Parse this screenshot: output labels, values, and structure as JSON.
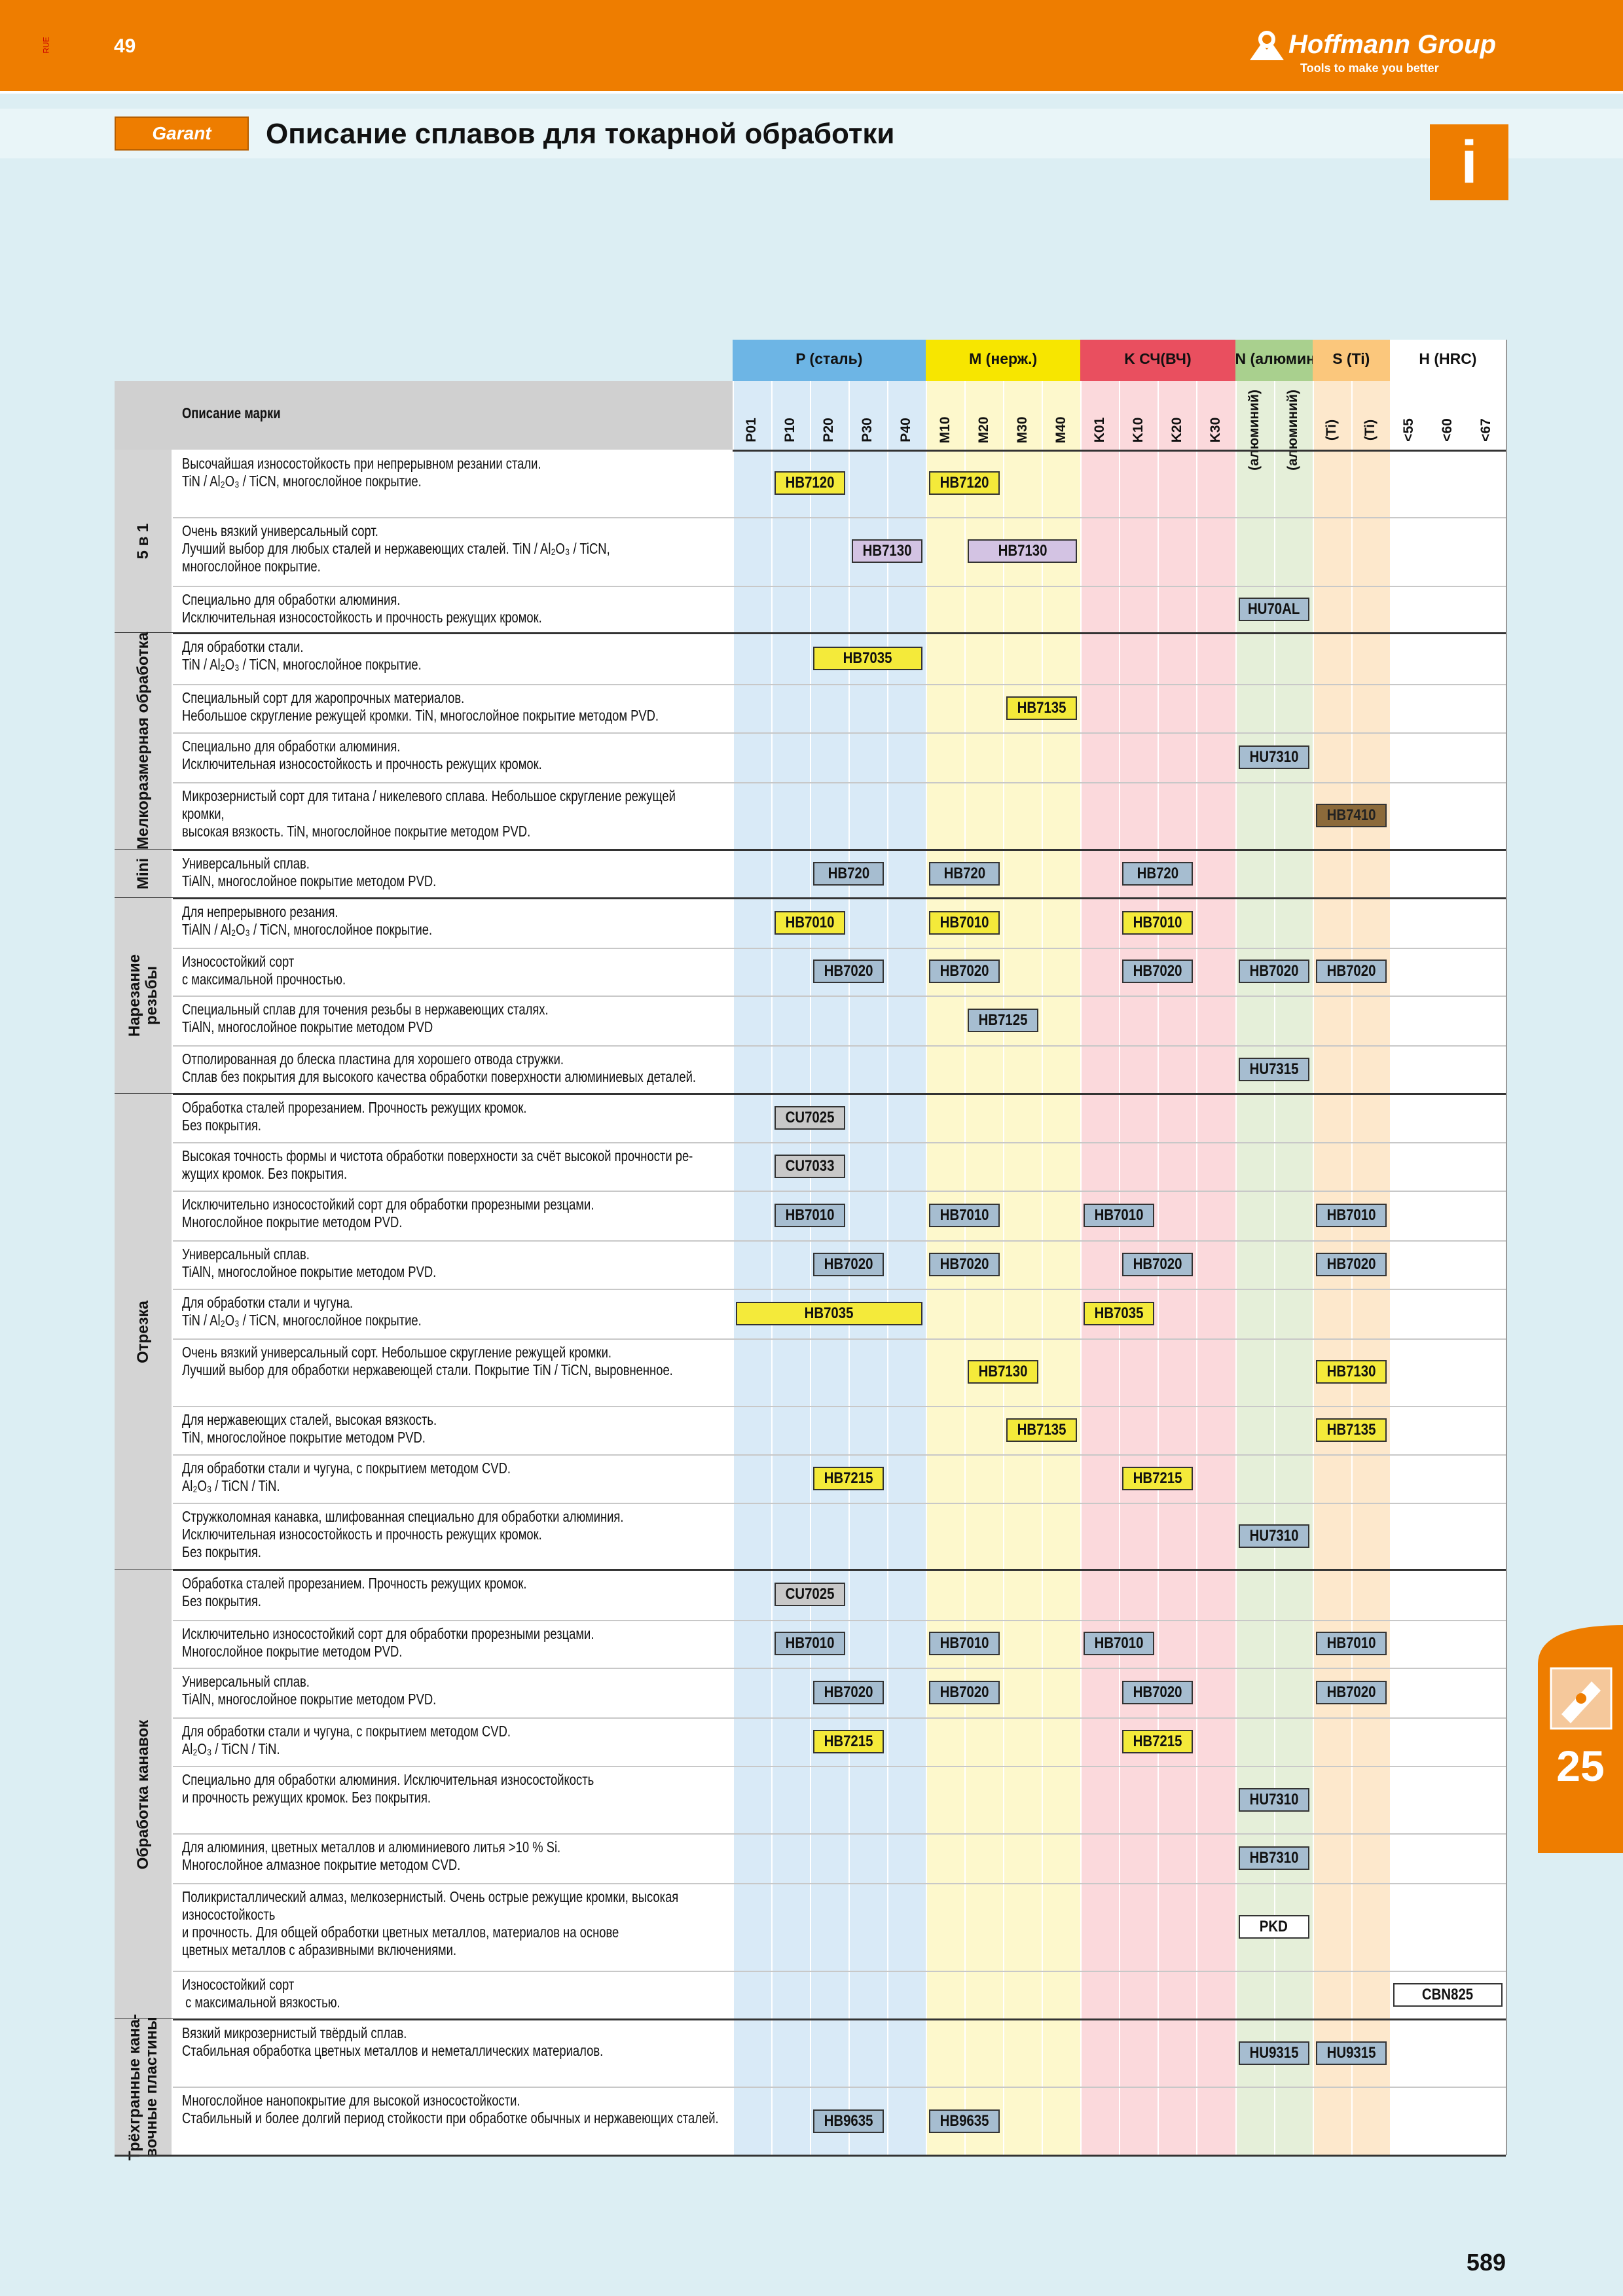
{
  "header": {
    "section_code": "RUE",
    "page_ref": "49",
    "brand": "Hoffmann Group",
    "slogan": "Tools to make you better"
  },
  "title_bar": {
    "logo": "Garant",
    "title": "Описание сплавов для токарной обработки",
    "info_icon": "i"
  },
  "table": {
    "description_header": "Описание марки",
    "column_groups": [
      {
        "label": "P (сталь)",
        "head_color": "#6db5e5",
        "body_color": "#d9eaf7",
        "columns": [
          "P01",
          "P10",
          "P20",
          "P30",
          "P40"
        ]
      },
      {
        "label": "M (нерж.)",
        "head_color": "#f7e600",
        "body_color": "#fdf8cc",
        "columns": [
          "M10",
          "M20",
          "M30",
          "M40"
        ]
      },
      {
        "label": "K СЧ(ВЧ)",
        "head_color": "#e94f5f",
        "body_color": "#fbd9dc",
        "columns": [
          "K01",
          "K10",
          "K20",
          "K30"
        ]
      },
      {
        "label": "N (алюминий)",
        "head_color": "#a9d08e",
        "body_color": "#e5efd9",
        "columns": [
          "(алюминий)",
          "(алюминий)"
        ]
      },
      {
        "label": "S (Ti)",
        "head_color": "#fbc77c",
        "body_color": "#fde8cc",
        "columns": [
          "(Ti)",
          "(Ti)"
        ]
      },
      {
        "label": "H (HRC)",
        "head_color": "#ffffff",
        "body_color": "#ffffff",
        "columns": [
          "<55",
          "<60",
          "<67"
        ]
      }
    ],
    "sections": [
      {
        "label": "5 в 1",
        "rows": [
          {
            "description": "Высочайшая износостойкость при непрерывном резании стали.\nTiN / Al₂O₃ / TiCN, многослойное покрытие.",
            "grades": [
              {
                "label": "HB7120",
                "from": 1,
                "to": 2,
                "color": "#f4ea3a"
              },
              {
                "label": "HB7120",
                "from": 5,
                "to": 6,
                "color": "#f4ea3a"
              }
            ]
          },
          {
            "description": "Очень вязкий универсальный сорт.\nЛучший выбор для любых сталей и нержавеющих сталей. TiN / Al₂O₃ / TiCN,\nмногослойное покрытие.",
            "grades": [
              {
                "label": "HB7130",
                "from": 3,
                "to": 4,
                "color": "#d3c3e3"
              },
              {
                "label": "HB7130",
                "from": 6,
                "to": 8,
                "color": "#d3c3e3"
              }
            ]
          },
          {
            "description": "Специально для обработки алюминия.\nИсключительная износостойкость и прочность режущих кромок.",
            "grades": [
              {
                "label": "HU70AL",
                "from": 13,
                "to": 14,
                "color": "#a6bdd0"
              }
            ]
          }
        ]
      },
      {
        "label": "Мелкоразмерная обработка",
        "rows": [
          {
            "description": "Для обработки стали.\nTiN / Al₂O₃ / TiCN, многослойное покрытие.",
            "grades": [
              {
                "label": "HB7035",
                "from": 2,
                "to": 4,
                "color": "#f4ea3a"
              }
            ]
          },
          {
            "description": "Специальный сорт для жаропрочных материалов.\nНебольшое скругление режущей кромки. TiN, многослойное покрытие методом PVD.",
            "grades": [
              {
                "label": "HB7135",
                "from": 7,
                "to": 8,
                "color": "#f4ea3a"
              }
            ]
          },
          {
            "description": "Специально для обработки алюминия.\nИсключительная износостойкость и прочность режущих кромок.",
            "grades": [
              {
                "label": "HU7310",
                "from": 13,
                "to": 14,
                "color": "#a6bdd0"
              }
            ]
          },
          {
            "description": "Микрозернистый сорт для титана / никелевого сплава. Небольшое скругление режущей\nкромки,\nвысокая вязкость. TiN, многослойное покрытие методом PVD.",
            "grades": [
              {
                "label": "HB7410",
                "from": 15,
                "to": 16,
                "color": "#8c6a3a"
              }
            ]
          }
        ]
      },
      {
        "label": "Mini",
        "rows": [
          {
            "description": "Универсальный сплав.\nTiAlN, многослойное покрытие методом PVD.",
            "grades": [
              {
                "label": "HB720",
                "from": 2,
                "to": 3,
                "color": "#a6bdd0"
              },
              {
                "label": "HB720",
                "from": 5,
                "to": 6,
                "color": "#a6bdd0"
              },
              {
                "label": "HB720",
                "from": 10,
                "to": 11,
                "color": "#a6bdd0"
              }
            ]
          }
        ]
      },
      {
        "label": "Нарезание\nрезьбы",
        "rows": [
          {
            "description": "Для непрерывного резания.\nTiAlN / Al₂O₃ / TiCN, многослойное покрытие.",
            "grades": [
              {
                "label": "HB7010",
                "from": 1,
                "to": 2,
                "color": "#f4ea3a"
              },
              {
                "label": "HB7010",
                "from": 5,
                "to": 6,
                "color": "#f4ea3a"
              },
              {
                "label": "HB7010",
                "from": 10,
                "to": 11,
                "color": "#f4ea3a"
              }
            ]
          },
          {
            "description": "Износостойкий сорт\nс максимальной прочностью.",
            "grades": [
              {
                "label": "HB7020",
                "from": 2,
                "to": 3,
                "color": "#a6bdd0"
              },
              {
                "label": "HB7020",
                "from": 5,
                "to": 6,
                "color": "#a6bdd0"
              },
              {
                "label": "HB7020",
                "from": 10,
                "to": 11,
                "color": "#a6bdd0"
              },
              {
                "label": "HB7020",
                "from": 13,
                "to": 14,
                "color": "#a6bdd0"
              },
              {
                "label": "HB7020",
                "from": 15,
                "to": 16,
                "color": "#a6bdd0"
              }
            ]
          },
          {
            "description": "Специальный сплав для точения резьбы в нержавеющих сталях.\nTiAlN, многослойное покрытие методом PVD",
            "grades": [
              {
                "label": "HB7125",
                "from": 6,
                "to": 7,
                "color": "#a6bdd0"
              }
            ]
          },
          {
            "description": "Отполированная до блеска пластина для хорошего отвода стружки.\nСплав без покрытия для высокого качества обработки поверхности алюминиевых деталей.",
            "grades": [
              {
                "label": "HU7315",
                "from": 13,
                "to": 14,
                "color": "#a6bdd0"
              }
            ]
          }
        ]
      },
      {
        "label": "Отрезка",
        "rows": [
          {
            "description": "Обработка сталей прорезанием. Прочность режущих кромок.\nБез покрытия.",
            "grades": [
              {
                "label": "CU7025",
                "from": 1,
                "to": 2,
                "color": "#c8c8c8"
              }
            ]
          },
          {
            "description": "Высокая точность формы и чистота обработки поверхности за счёт высокой прочности ре-\nжущих кромок. Без покрытия.",
            "grades": [
              {
                "label": "CU7033",
                "from": 1,
                "to": 2,
                "color": "#c8c8c8"
              }
            ]
          },
          {
            "description": "Исключительно износостойкий сорт для обработки прорезными резцами.\nМногослойное покрытие методом PVD.",
            "grades": [
              {
                "label": "HB7010",
                "from": 1,
                "to": 2,
                "color": "#a6bdd0"
              },
              {
                "label": "HB7010",
                "from": 5,
                "to": 6,
                "color": "#a6bdd0"
              },
              {
                "label": "HB7010",
                "from": 9,
                "to": 10,
                "color": "#a6bdd0"
              },
              {
                "label": "HB7010",
                "from": 15,
                "to": 16,
                "color": "#a6bdd0"
              }
            ]
          },
          {
            "description": "Универсальный сплав.\nTiAlN, многослойное покрытие методом PVD.",
            "grades": [
              {
                "label": "HB7020",
                "from": 2,
                "to": 3,
                "color": "#a6bdd0"
              },
              {
                "label": "HB7020",
                "from": 5,
                "to": 6,
                "color": "#a6bdd0"
              },
              {
                "label": "HB7020",
                "from": 10,
                "to": 11,
                "color": "#a6bdd0"
              },
              {
                "label": "HB7020",
                "from": 15,
                "to": 16,
                "color": "#a6bdd0"
              }
            ]
          },
          {
            "description": "Для обработки стали и чугуна.\nTiN / Al₂O₃ / TiCN, многослойное покрытие.",
            "grades": [
              {
                "label": "HB7035",
                "from": 0,
                "to": 4,
                "color": "#f4ea3a"
              },
              {
                "label": "HB7035",
                "from": 9,
                "to": 10,
                "color": "#f4ea3a"
              }
            ]
          },
          {
            "description": "Очень вязкий универсальный сорт. Небольшое скругление режущей кромки.\nЛучший выбор для обработки нержавеющей стали. Покрытие TiN / TiCN, выровненное.",
            "grades": [
              {
                "label": "HB7130",
                "from": 6,
                "to": 7,
                "color": "#f4ea3a"
              },
              {
                "label": "HB7130",
                "from": 15,
                "to": 16,
                "color": "#f4ea3a"
              }
            ]
          },
          {
            "description": "Для нержавеющих сталей, высокая вязкость.\nTiN, многослойное покрытие методом PVD.",
            "grades": [
              {
                "label": "HB7135",
                "from": 7,
                "to": 8,
                "color": "#f4ea3a"
              },
              {
                "label": "HB7135",
                "from": 15,
                "to": 16,
                "color": "#f4ea3a"
              }
            ]
          },
          {
            "description": "Для обработки стали и чугуна, с покрытием методом CVD.\nAl₂O₃ / TiCN / TiN.",
            "grades": [
              {
                "label": "HB7215",
                "from": 2,
                "to": 3,
                "color": "#f4ea3a"
              },
              {
                "label": "HB7215",
                "from": 10,
                "to": 11,
                "color": "#f4ea3a"
              }
            ]
          },
          {
            "description": "Стружколомная канавка, шлифованная специально для обработки алюминия.\nИсключительная износостойкость и прочность режущих кромок.\nБез покрытия.",
            "grades": [
              {
                "label": "HU7310",
                "from": 13,
                "to": 14,
                "color": "#a6bdd0"
              }
            ]
          }
        ]
      },
      {
        "label": "Обработка канавок",
        "rows": [
          {
            "description": "Обработка сталей прорезанием. Прочность режущих кромок.\nБез покрытия.",
            "grades": [
              {
                "label": "CU7025",
                "from": 1,
                "to": 2,
                "color": "#c8c8c8"
              }
            ]
          },
          {
            "description": "Исключительно износостойкий сорт для обработки прорезными резцами.\nМногослойное покрытие методом PVD.",
            "grades": [
              {
                "label": "HB7010",
                "from": 1,
                "to": 2,
                "color": "#a6bdd0"
              },
              {
                "label": "HB7010",
                "from": 5,
                "to": 6,
                "color": "#a6bdd0"
              },
              {
                "label": "HB7010",
                "from": 9,
                "to": 10,
                "color": "#a6bdd0"
              },
              {
                "label": "HB7010",
                "from": 15,
                "to": 16,
                "color": "#a6bdd0"
              }
            ]
          },
          {
            "description": "Универсальный сплав.\nTiAlN, многослойное покрытие методом PVD.",
            "grades": [
              {
                "label": "HB7020",
                "from": 2,
                "to": 3,
                "color": "#a6bdd0"
              },
              {
                "label": "HB7020",
                "from": 5,
                "to": 6,
                "color": "#a6bdd0"
              },
              {
                "label": "HB7020",
                "from": 10,
                "to": 11,
                "color": "#a6bdd0"
              },
              {
                "label": "HB7020",
                "from": 15,
                "to": 16,
                "color": "#a6bdd0"
              }
            ]
          },
          {
            "description": "Для обработки стали и чугуна, с покрытием методом CVD.\nAl₂O₃ / TiCN / TiN.",
            "grades": [
              {
                "label": "HB7215",
                "from": 2,
                "to": 3,
                "color": "#f4ea3a"
              },
              {
                "label": "HB7215",
                "from": 10,
                "to": 11,
                "color": "#f4ea3a"
              }
            ]
          },
          {
            "description": "Специально для обработки алюминия. Исключительная износостойкость\nи прочность режущих кромок. Без покрытия.",
            "grades": [
              {
                "label": "HU7310",
                "from": 13,
                "to": 14,
                "color": "#a6bdd0"
              }
            ]
          },
          {
            "description": "Для алюминия, цветных металлов и алюминиевого литья >10 % Si.\nМногослойное алмазное покрытие методом CVD.",
            "grades": [
              {
                "label": "HB7310",
                "from": 13,
                "to": 14,
                "color": "#a6bdd0"
              }
            ]
          },
          {
            "description": "Поликристаллический алмаз, мелкозернистый. Очень острые режущие кромки, высокая\nизносостойкость\nи прочность. Для общей обработки цветных металлов, материалов на основе\nцветных металлов с абразивными включениями.",
            "grades": [
              {
                "label": "PKD",
                "from": 13,
                "to": 14,
                "color": "#ffffff"
              }
            ]
          },
          {
            "description": "Износостойкий сорт\n с максимальной вязкостью.",
            "grades": [
              {
                "label": "CBN825",
                "from": 17,
                "to": 19,
                "color": "#ffffff"
              }
            ]
          }
        ]
      },
      {
        "label": "Трёхгранные кана-\nвочные пластины",
        "rows": [
          {
            "description": "Вязкий микрозернистый твёрдый сплав.\nСтабильная обработка цветных металлов и неметаллических материалов.",
            "grades": [
              {
                "label": "HU9315",
                "from": 13,
                "to": 14,
                "color": "#a6bdd0"
              },
              {
                "label": "HU9315",
                "from": 15,
                "to": 16,
                "color": "#a6bdd0"
              }
            ]
          },
          {
            "description": "Многослойное нанопокрытие для высокой износостойкости.\nСтабильный и более долгий период стойкости при обработке обычных и нержавеющих сталей.",
            "grades": [
              {
                "label": "HB9635",
                "from": 2,
                "to": 3,
                "color": "#a6bdd0"
              },
              {
                "label": "HB9635",
                "from": 5,
                "to": 6,
                "color": "#a6bdd0"
              }
            ]
          }
        ]
      }
    ]
  },
  "side_tab": {
    "chapter": "25"
  },
  "footer": {
    "page_number": "589"
  }
}
